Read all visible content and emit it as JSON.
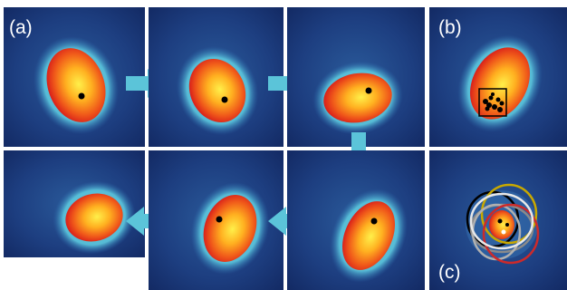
{
  "figure": {
    "labels": {
      "a": "(a)",
      "b": "(b)",
      "c": "(c)"
    }
  },
  "colors": {
    "background": "#17306f",
    "halo": "#6fe0e6",
    "blob_edge": "#e8241a",
    "blob_core": "#fff04a",
    "arrow": "#5bc4d9",
    "dot": "#000000",
    "box": "#000000"
  },
  "sequence": {
    "frames": 7,
    "arrow_directions": [
      "right",
      "right",
      "down",
      "left",
      "left"
    ]
  },
  "panel_c": {
    "ring_colors": [
      "#000000",
      "#c8a800",
      "#8a8a8a",
      "#b0b0b0",
      "#cc2a2a",
      "#e8e8e8"
    ]
  }
}
